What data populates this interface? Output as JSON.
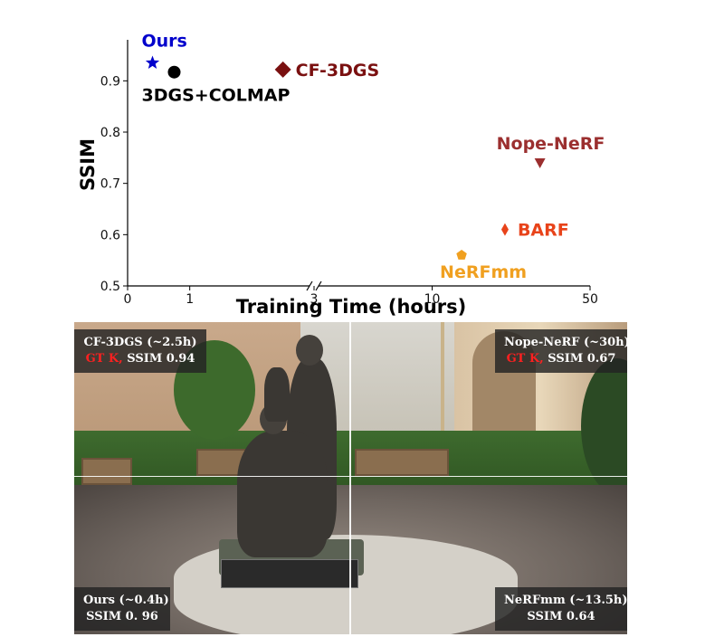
{
  "chart_data": {
    "type": "scatter",
    "title": "",
    "xlabel": "Training Time (hours)",
    "ylabel": "SSIM",
    "xscale": "broken-axis (linear 0–3, log 3–50)",
    "xticks": [
      0,
      1,
      3,
      10,
      50
    ],
    "yticks": [
      0.5,
      0.6,
      0.7,
      0.8,
      0.9
    ],
    "xlim": [
      0,
      50
    ],
    "ylim": [
      0.5,
      0.98
    ],
    "grid": false,
    "legend": "none",
    "points": [
      {
        "name": "Ours",
        "x": 0.4,
        "y": 0.935,
        "marker": "star",
        "color": "#0000cc",
        "label_pos": "above"
      },
      {
        "name": "3DGS+COLMAP",
        "x": 0.75,
        "y": 0.917,
        "marker": "circle",
        "color": "#000000",
        "label_pos": "below"
      },
      {
        "name": "CF-3DGS",
        "x": 2.5,
        "y": 0.922,
        "marker": "diamond",
        "color": "#7a1010",
        "label_pos": "right"
      },
      {
        "name": "Nope-NeRF",
        "x": 30,
        "y": 0.74,
        "marker": "triangle-down",
        "color": "#9b2f2f",
        "label_pos": "above"
      },
      {
        "name": "BARF",
        "x": 21,
        "y": 0.61,
        "marker": "thin-diamond",
        "color": "#e8431a",
        "label_pos": "right"
      },
      {
        "name": "NeRFmm",
        "x": 13.5,
        "y": 0.56,
        "marker": "pentagon",
        "color": "#f0a020",
        "label_pos": "below"
      }
    ]
  },
  "captions": {
    "top_left": {
      "method": "CF-3DGS (~2.5h)",
      "gt": "GT K,",
      "metric": "SSIM 0.94"
    },
    "top_right": {
      "method": "Nope-NeRF (~30h)",
      "gt": "GT K,",
      "metric": "SSIM 0.67"
    },
    "bottom_left": {
      "method": "Ours (~0.4h)",
      "metric": "SSIM 0. 96"
    },
    "bottom_right": {
      "method": "NeRFmm (~13.5h)",
      "metric": "SSIM 0.64"
    }
  }
}
